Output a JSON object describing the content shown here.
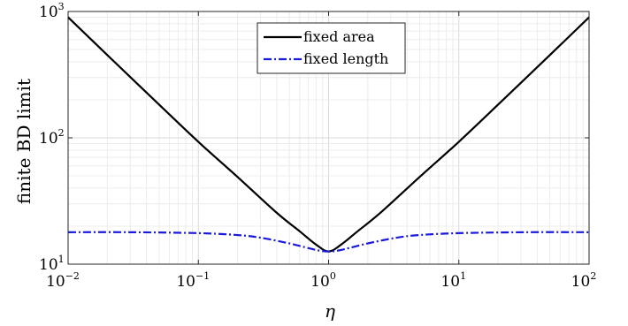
{
  "chart_data": {
    "type": "line",
    "title": "",
    "xlabel": "η",
    "ylabel": "finite BD limit",
    "x_scale": "log",
    "y_scale": "log",
    "xlim": [
      0.01,
      100
    ],
    "ylim": [
      10,
      1000
    ],
    "grid": true,
    "legend_position": "top-center",
    "x_ticks": [
      {
        "base": "10",
        "exp": "−2",
        "value": 0.01
      },
      {
        "base": "10",
        "exp": "−1",
        "value": 0.1
      },
      {
        "base": "10",
        "exp": "0",
        "value": 1
      },
      {
        "base": "10",
        "exp": "1",
        "value": 10
      },
      {
        "base": "10",
        "exp": "2",
        "value": 100
      }
    ],
    "y_ticks": [
      {
        "base": "10",
        "exp": "1",
        "value": 10
      },
      {
        "base": "10",
        "exp": "2",
        "value": 100
      },
      {
        "base": "10",
        "exp": "3",
        "value": 1000
      }
    ],
    "series": [
      {
        "name": "fixed area",
        "color": "#000000",
        "dash": "solid",
        "x": [
          0.01,
          0.02,
          0.05,
          0.1,
          0.2,
          0.4,
          0.6,
          0.8,
          1.0,
          1.25,
          1.67,
          2.5,
          5,
          10,
          20,
          50,
          100
        ],
        "y": [
          900,
          452,
          183,
          93,
          49,
          25.5,
          18.2,
          14.3,
          12.6,
          14.3,
          18.2,
          25.5,
          49,
          93,
          183,
          452,
          900
        ]
      },
      {
        "name": "fixed length",
        "color": "#1a1adc",
        "dash": "dashdot",
        "x": [
          0.01,
          0.03,
          0.1,
          0.2,
          0.3,
          0.5,
          0.7,
          0.85,
          1.0,
          1.18,
          1.43,
          2,
          3.33,
          5,
          10,
          33,
          100
        ],
        "y": [
          17.9,
          17.9,
          17.6,
          17.0,
          16.2,
          14.6,
          13.4,
          12.8,
          12.6,
          12.8,
          13.4,
          14.6,
          16.2,
          17.0,
          17.6,
          17.9,
          17.9
        ]
      }
    ]
  }
}
